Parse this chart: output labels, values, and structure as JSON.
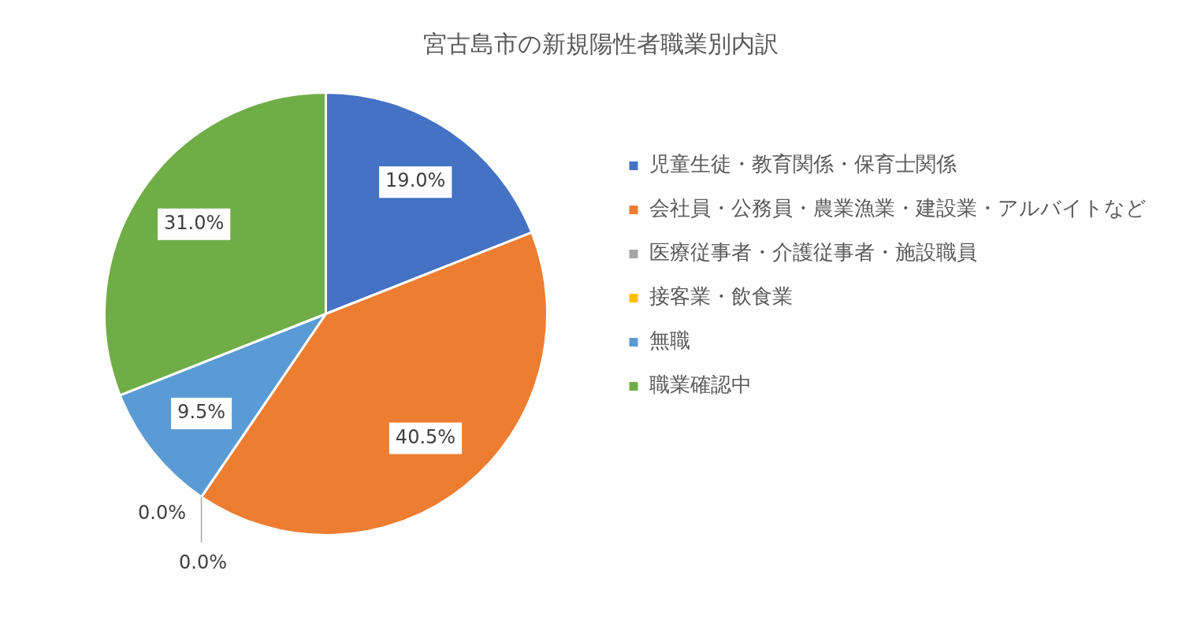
{
  "chart_data": {
    "type": "pie",
    "title": "宮古島市の新規陽性者職業別内訳",
    "categories": [
      "児童生徒・教育関係・保育士関係",
      "会社員・公務員・農業漁業・建設業・アルバイトなど",
      "医療従事者・介護従事者・施設職員",
      "接客業・飲食業",
      "無職",
      "職業確認中"
    ],
    "values": [
      19.0,
      40.5,
      0.0,
      0.0,
      9.5,
      31.0
    ],
    "colors": [
      "#4472c4",
      "#ed7d31",
      "#a5a5a5",
      "#ffc000",
      "#5b9bd5",
      "#70ad47"
    ],
    "value_labels": [
      "19.0%",
      "40.5%",
      "0.0%",
      "0.0%",
      "9.5%",
      "31.0%"
    ],
    "legend": "right"
  }
}
